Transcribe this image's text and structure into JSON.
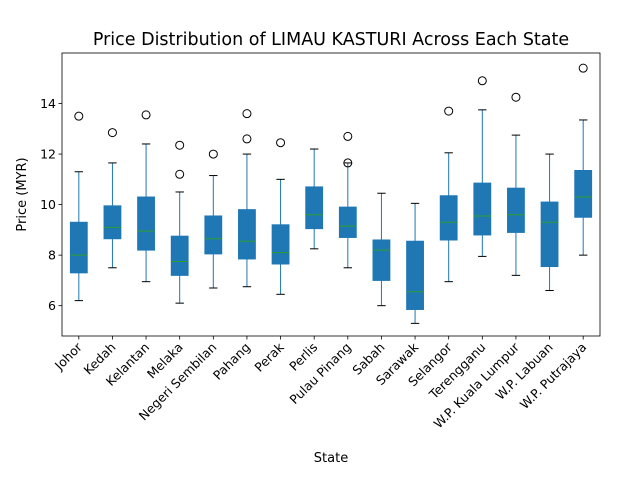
{
  "chart_data": {
    "type": "boxplot",
    "title": "Price Distribution of LIMAU KASTURI Across Each State",
    "xlabel": "State",
    "ylabel": "Price (MYR)",
    "ylim": [
      4.8,
      16.0
    ],
    "yticks": [
      6,
      8,
      10,
      12,
      14
    ],
    "grid": false,
    "colors": {
      "box_fill": "#1f77b4",
      "whisker": "#1f77b4",
      "median": "#2ca02c",
      "flier_edge": "#000000",
      "axes": "#000000",
      "background": "#ffffff"
    },
    "categories": [
      "Johor",
      "Kedah",
      "Kelantan",
      "Melaka",
      "Negeri Sembilan",
      "Pahang",
      "Perak",
      "Perlis",
      "Pulau Pinang",
      "Sabah",
      "Sarawak",
      "Selangor",
      "Terengganu",
      "W.P. Kuala Lumpur",
      "W.P. Labuan",
      "W.P. Putrajaya"
    ],
    "boxes": [
      {
        "whislo": 6.2,
        "q1": 7.3,
        "med": 8.0,
        "q3": 9.3,
        "whishi": 11.3,
        "fliers": [
          13.5
        ]
      },
      {
        "whislo": 7.5,
        "q1": 8.65,
        "med": 9.1,
        "q3": 9.95,
        "whishi": 11.65,
        "fliers": [
          12.85
        ]
      },
      {
        "whislo": 6.95,
        "q1": 8.2,
        "med": 8.95,
        "q3": 10.3,
        "whishi": 12.4,
        "fliers": [
          13.55
        ]
      },
      {
        "whislo": 6.1,
        "q1": 7.2,
        "med": 7.75,
        "q3": 8.75,
        "whishi": 10.5,
        "fliers": [
          11.2,
          12.35
        ]
      },
      {
        "whislo": 6.7,
        "q1": 8.05,
        "med": 8.65,
        "q3": 9.55,
        "whishi": 11.15,
        "fliers": [
          12.0
        ]
      },
      {
        "whislo": 6.75,
        "q1": 7.85,
        "med": 8.55,
        "q3": 9.8,
        "whishi": 12.0,
        "fliers": [
          12.6,
          13.6
        ]
      },
      {
        "whislo": 6.45,
        "q1": 7.65,
        "med": 8.1,
        "q3": 9.2,
        "whishi": 11.0,
        "fliers": [
          12.45
        ]
      },
      {
        "whislo": 8.25,
        "q1": 9.05,
        "med": 9.6,
        "q3": 10.7,
        "whishi": 12.2,
        "fliers": []
      },
      {
        "whislo": 7.5,
        "q1": 8.7,
        "med": 9.15,
        "q3": 9.9,
        "whishi": 11.65,
        "fliers": [
          11.65,
          12.7
        ]
      },
      {
        "whislo": 6.0,
        "q1": 7.0,
        "med": 8.2,
        "q3": 8.6,
        "whishi": 10.45,
        "fliers": []
      },
      {
        "whislo": 5.3,
        "q1": 5.85,
        "med": 6.55,
        "q3": 8.55,
        "whishi": 10.05,
        "fliers": []
      },
      {
        "whislo": 6.95,
        "q1": 8.6,
        "med": 9.3,
        "q3": 10.35,
        "whishi": 12.05,
        "fliers": [
          13.7
        ]
      },
      {
        "whislo": 7.95,
        "q1": 8.8,
        "med": 9.55,
        "q3": 10.85,
        "whishi": 13.75,
        "fliers": [
          14.9
        ]
      },
      {
        "whislo": 7.2,
        "q1": 8.9,
        "med": 9.6,
        "q3": 10.65,
        "whishi": 12.75,
        "fliers": [
          14.25
        ]
      },
      {
        "whislo": 6.6,
        "q1": 7.55,
        "med": 9.3,
        "q3": 10.1,
        "whishi": 12.0,
        "fliers": []
      },
      {
        "whislo": 8.0,
        "q1": 9.5,
        "med": 10.3,
        "q3": 11.35,
        "whishi": 13.35,
        "fliers": [
          15.4
        ]
      }
    ]
  }
}
